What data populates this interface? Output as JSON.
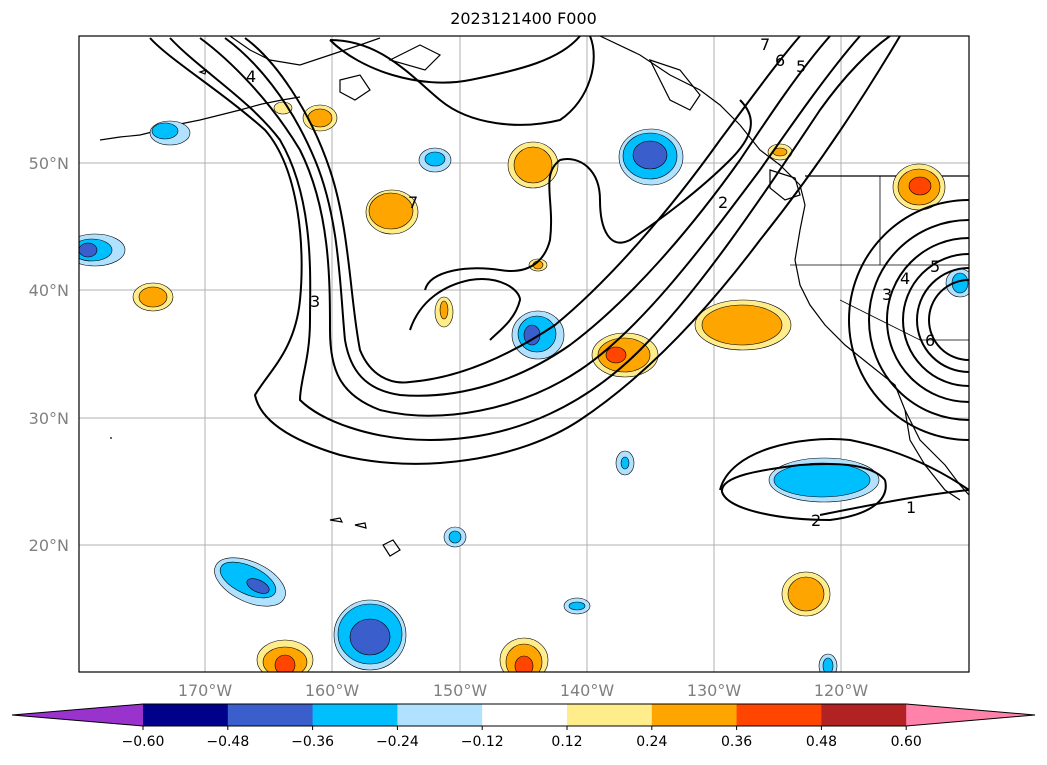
{
  "title": "2023121400 F000",
  "map": {
    "lat_labels": [
      "50°N",
      "40°N",
      "30°N",
      "20°N"
    ],
    "lon_labels": [
      "170°W",
      "160°W",
      "150°W",
      "140°W",
      "130°W",
      "120°W"
    ],
    "contour_labels": [
      "1",
      "2",
      "2",
      "3",
      "3",
      "4",
      "4",
      "5",
      "5",
      "6",
      "6",
      "7",
      "7"
    ]
  },
  "colorbar": {
    "ticks": [
      "−0.60",
      "−0.48",
      "−0.36",
      "−0.24",
      "−0.12",
      "0.12",
      "0.24",
      "0.36",
      "0.48",
      "0.60"
    ],
    "colors": [
      "#9a32cd",
      "#00008b",
      "#3a5fcd",
      "#00bfff",
      "#b0e2ff",
      "#ffffff",
      "#ffec8b",
      "#ffa500",
      "#ff4500",
      "#b22222",
      "#ff82ab"
    ]
  }
}
